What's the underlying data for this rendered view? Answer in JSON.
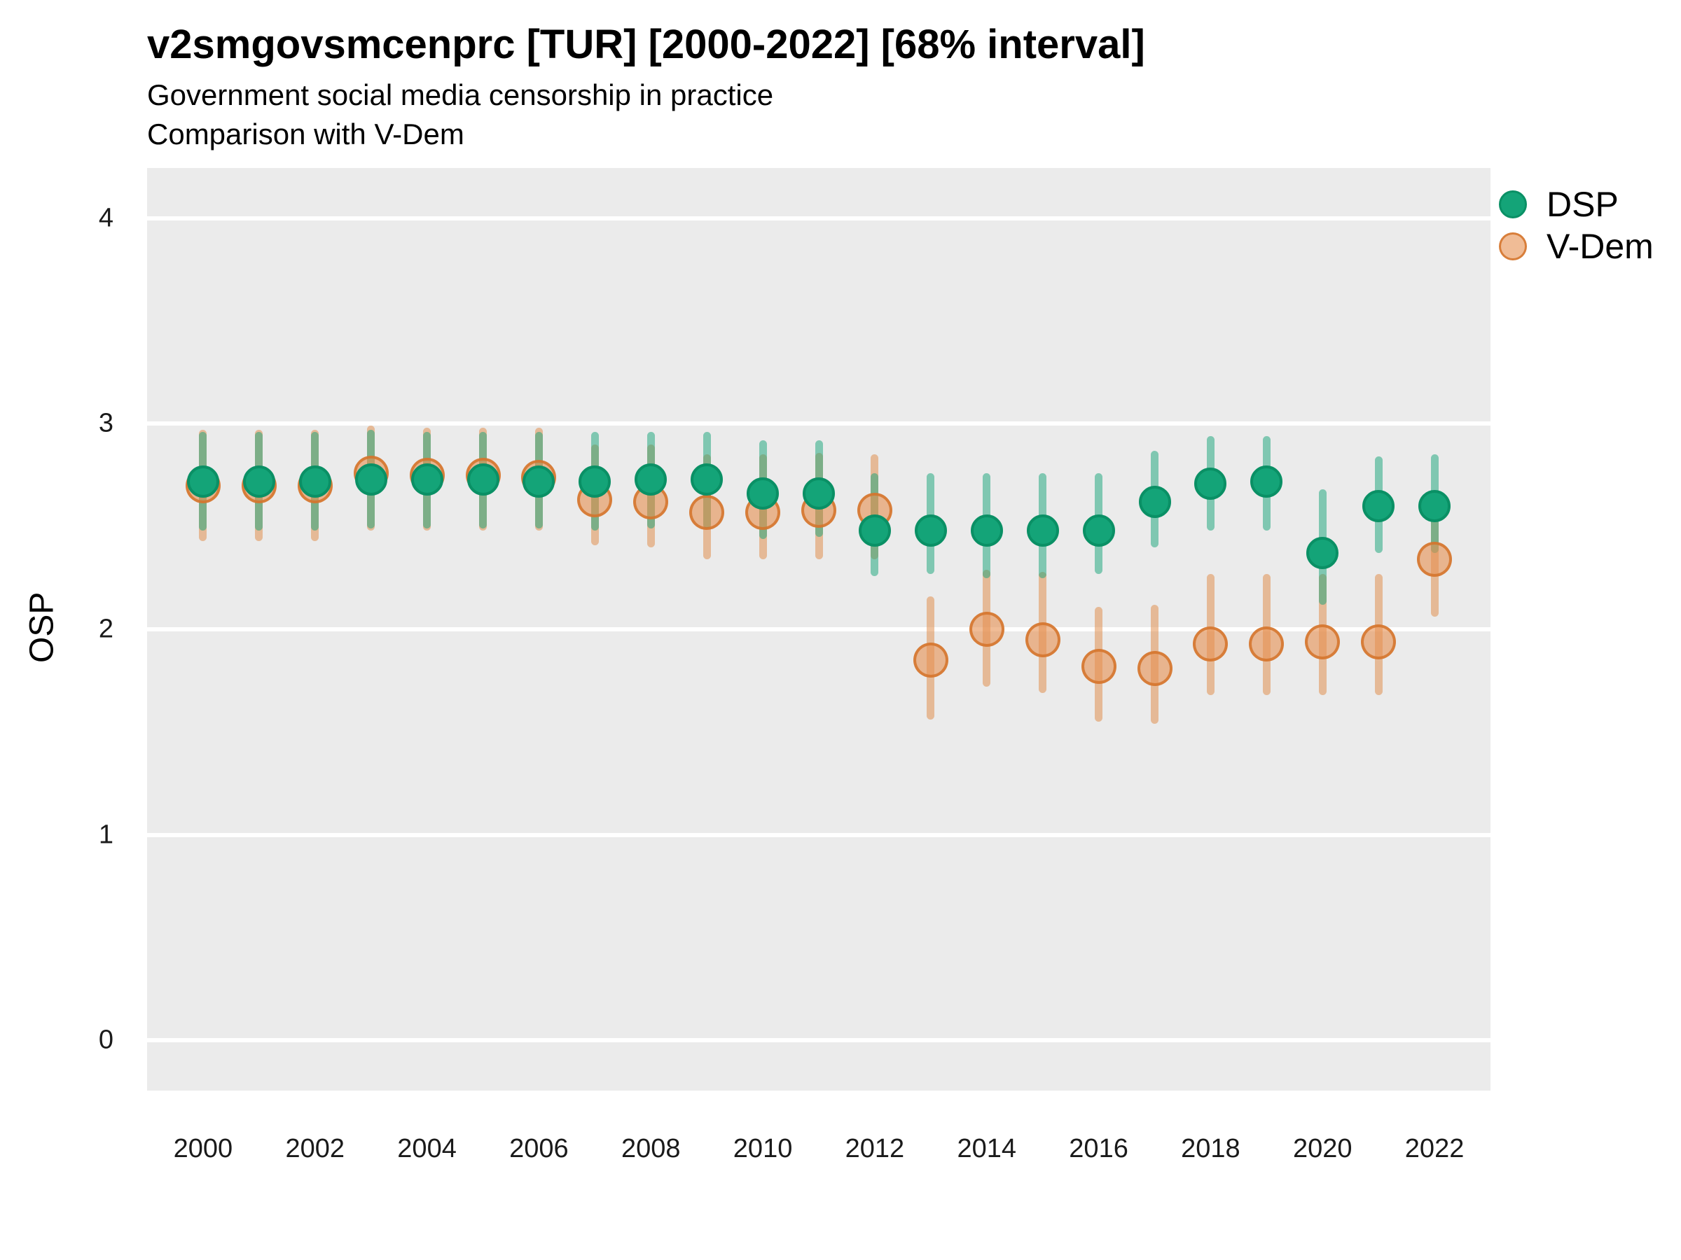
{
  "header": {
    "title": "v2smgovsmcenprc [TUR] [2000-2022] [68% interval]",
    "subtitle_line1": "Government social media censorship in practice",
    "subtitle_line2": "Comparison with V-Dem"
  },
  "y_axis": {
    "title": "OSP",
    "ticks": [
      "4",
      "3",
      "2",
      "1",
      "0"
    ]
  },
  "x_axis": {
    "tick_labels": [
      "2000",
      "2002",
      "2004",
      "2006",
      "2008",
      "2010",
      "2012",
      "2014",
      "2016",
      "2018",
      "2020",
      "2022"
    ]
  },
  "legend": {
    "entries": [
      {
        "label": "DSP",
        "color": "#14a478"
      },
      {
        "label": "V-Dem",
        "color": "#f2bd92"
      }
    ]
  },
  "colors": {
    "panel_background": "#ebebeb",
    "gridline": "#ffffff",
    "dsp_point_fill": "#14a478",
    "dsp_point_border": "#0a9065",
    "dsp_interval": "rgba(20,164,120,0.5)",
    "vdem_point_fill": "rgba(230,144,80,0.6)",
    "vdem_point_border": "rgba(212,115,42,0.85)",
    "vdem_interval": "rgba(224,136,66,0.5)"
  },
  "chart_data": {
    "type": "pointrange-scatter",
    "title": "v2smgovsmcenprc [TUR] [2000-2022] [68% interval]",
    "subtitle": "Government social media censorship in practice — Comparison with V-Dem",
    "xlabel": "",
    "ylabel": "OSP",
    "interval": "68%",
    "grid": "on",
    "legend_position": "top-right",
    "xlim": [
      1999,
      2023
    ],
    "ylim": [
      -0.245,
      4.245
    ],
    "y_ticks": [
      0,
      1,
      2,
      3,
      4
    ],
    "x_tick_years": [
      2000,
      2002,
      2004,
      2006,
      2008,
      2010,
      2012,
      2014,
      2016,
      2018,
      2020,
      2022
    ],
    "years": [
      2000,
      2001,
      2002,
      2003,
      2004,
      2005,
      2006,
      2007,
      2008,
      2009,
      2010,
      2011,
      2012,
      2013,
      2014,
      2015,
      2016,
      2017,
      2018,
      2019,
      2020,
      2021,
      2022
    ],
    "series": [
      {
        "name": "DSP",
        "estimate": [
          2.72,
          2.72,
          2.72,
          2.73,
          2.73,
          2.73,
          2.72,
          2.72,
          2.73,
          2.73,
          2.66,
          2.66,
          2.48,
          2.48,
          2.48,
          2.48,
          2.48,
          2.62,
          2.71,
          2.72,
          2.37,
          2.6,
          2.6
        ],
        "lower": [
          2.48,
          2.48,
          2.48,
          2.49,
          2.49,
          2.49,
          2.49,
          2.48,
          2.49,
          2.49,
          2.44,
          2.45,
          2.26,
          2.27,
          2.25,
          2.25,
          2.27,
          2.4,
          2.48,
          2.48,
          2.12,
          2.37,
          2.37
        ],
        "upper": [
          2.96,
          2.96,
          2.96,
          2.97,
          2.96,
          2.96,
          2.96,
          2.96,
          2.96,
          2.96,
          2.92,
          2.92,
          2.76,
          2.76,
          2.76,
          2.76,
          2.76,
          2.87,
          2.94,
          2.94,
          2.68,
          2.84,
          2.85
        ]
      },
      {
        "name": "V-Dem",
        "estimate": [
          2.7,
          2.7,
          2.7,
          2.76,
          2.75,
          2.75,
          2.74,
          2.63,
          2.62,
          2.57,
          2.57,
          2.58,
          2.58,
          1.85,
          2.0,
          1.95,
          1.82,
          1.81,
          1.93,
          1.93,
          1.94,
          1.94,
          2.34
        ],
        "lower": [
          2.43,
          2.43,
          2.43,
          2.48,
          2.48,
          2.48,
          2.48,
          2.41,
          2.4,
          2.34,
          2.34,
          2.34,
          2.34,
          1.56,
          1.72,
          1.69,
          1.55,
          1.54,
          1.68,
          1.68,
          1.68,
          1.68,
          2.06
        ],
        "upper": [
          2.97,
          2.97,
          2.97,
          2.99,
          2.98,
          2.98,
          2.98,
          2.9,
          2.9,
          2.85,
          2.85,
          2.86,
          2.85,
          2.16,
          2.29,
          2.28,
          2.11,
          2.12,
          2.27,
          2.27,
          2.27,
          2.27,
          2.57
        ]
      }
    ]
  }
}
